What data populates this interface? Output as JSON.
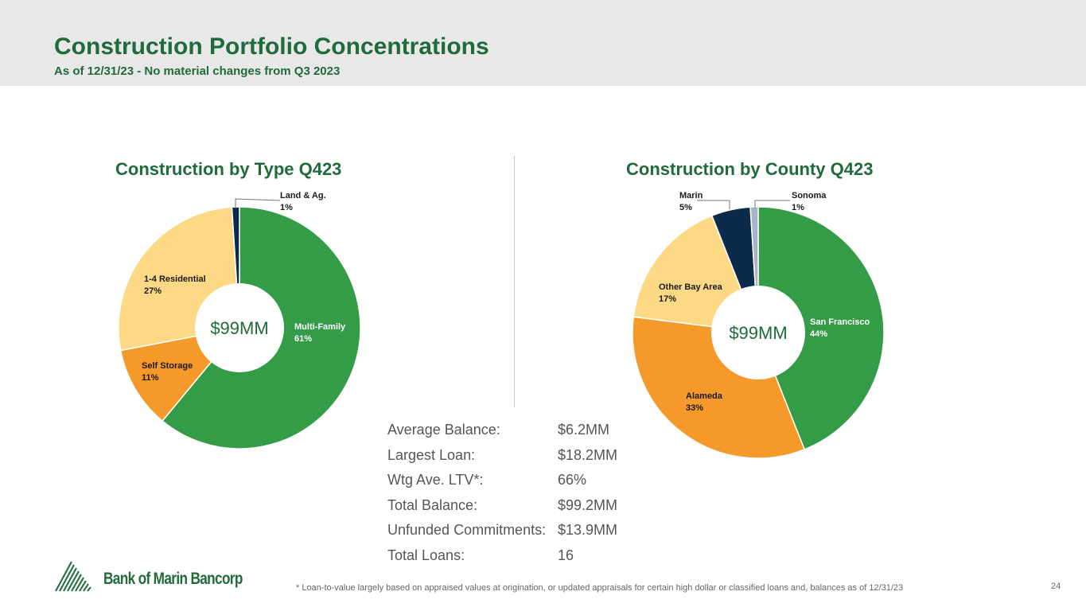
{
  "header": {
    "title": "Construction Portfolio Concentrations",
    "subtitle": "As of 12/31/23 - No material changes from Q3 2023"
  },
  "chart_data": [
    {
      "type": "pie",
      "title": "Construction by Type Q423",
      "center_label": "$99MM",
      "slices": [
        {
          "label": "Multi-Family",
          "pct_label": "61%",
          "value": 61,
          "color": "#349b46"
        },
        {
          "label": "Self Storage",
          "pct_label": "11%",
          "value": 11,
          "color": "#f5992a"
        },
        {
          "label": "1-4 Residential",
          "pct_label": "27%",
          "value": 27,
          "color": "#fdd885"
        },
        {
          "label": "Land & Ag.",
          "pct_label": "1%",
          "value": 1,
          "color": "#0c2a4a"
        }
      ]
    },
    {
      "type": "pie",
      "title": "Construction by County Q423",
      "center_label": "$99MM",
      "slices": [
        {
          "label": "San Francisco",
          "pct_label": "44%",
          "value": 44,
          "color": "#349b46"
        },
        {
          "label": "Alameda",
          "pct_label": "33%",
          "value": 33,
          "color": "#f5992a"
        },
        {
          "label": "Other Bay Area",
          "pct_label": "17%",
          "value": 17,
          "color": "#fdd885"
        },
        {
          "label": "Marin",
          "pct_label": "5%",
          "value": 5,
          "color": "#0c2a4a"
        },
        {
          "label": "Sonoma",
          "pct_label": "1%",
          "value": 1,
          "color": "#a7b4c4"
        }
      ]
    }
  ],
  "stats": [
    {
      "label": "Average Balance:",
      "value": "$6.2MM"
    },
    {
      "label": "Largest Loan:",
      "value": "$18.2MM"
    },
    {
      "label": "Wtg Ave. LTV*:",
      "value": "66%"
    },
    {
      "label": "Total Balance:",
      "value": "$99.2MM"
    },
    {
      "label": "Unfunded Commitments:",
      "value": "$13.9MM"
    },
    {
      "label": "Total Loans:",
      "value": "16"
    }
  ],
  "footnote": "*  Loan-to-value largely based on appraised values at origination, or updated appraisals for certain high dollar or classified loans and, balances as of 12/31/23",
  "page_number": "24",
  "logo": {
    "text": "Bank of Marin Bancorp",
    "icon": "mountain-lines-logo"
  },
  "colors": {
    "brand_green": "#1f6b3a"
  }
}
